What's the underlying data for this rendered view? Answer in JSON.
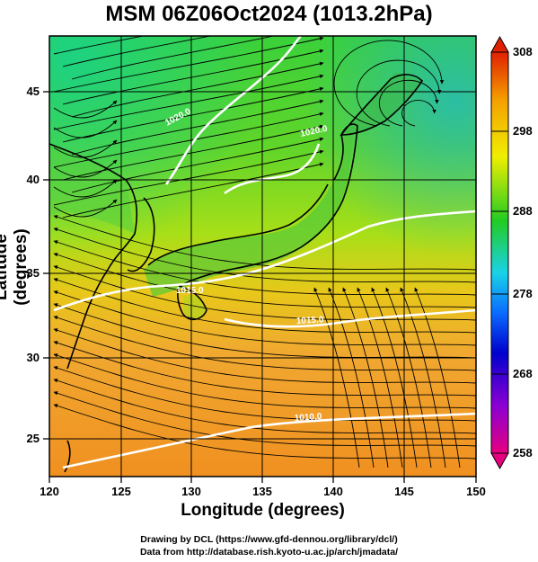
{
  "title": "MSM 06Z06Oct2024 (1013.2hPa)",
  "axes": {
    "xlabel": "Longitude (degrees)",
    "ylabel": "Latitude  (degrees)",
    "x_ticks": [
      120,
      125,
      130,
      135,
      140,
      145,
      150
    ],
    "y_ticks": [
      25,
      30,
      35,
      40,
      45
    ],
    "xlim": [
      120,
      150
    ],
    "ylim": [
      22.4,
      47.6
    ]
  },
  "colorbar": {
    "ticks": [
      258,
      268,
      278,
      288,
      298,
      308
    ],
    "range": [
      258,
      308
    ],
    "colors": [
      "#e6007f",
      "#8a00d4",
      "#0000cc",
      "#0a6cff",
      "#19d2e6",
      "#22cc22",
      "#f0ee00",
      "#f5a000",
      "#e02000"
    ]
  },
  "contours": [
    {
      "label": "1020.0"
    },
    {
      "label": "1020.0"
    },
    {
      "label": "1015.0"
    },
    {
      "label": "1015.0"
    },
    {
      "label": "1010.0"
    }
  ],
  "credits": {
    "line1": "Drawing by DCL (https://www.gfd-dennou.org/library/dcl/)",
    "line2": "Data from http://database.rish.kyoto-u.ac.jp/arch/jmadata/"
  }
}
